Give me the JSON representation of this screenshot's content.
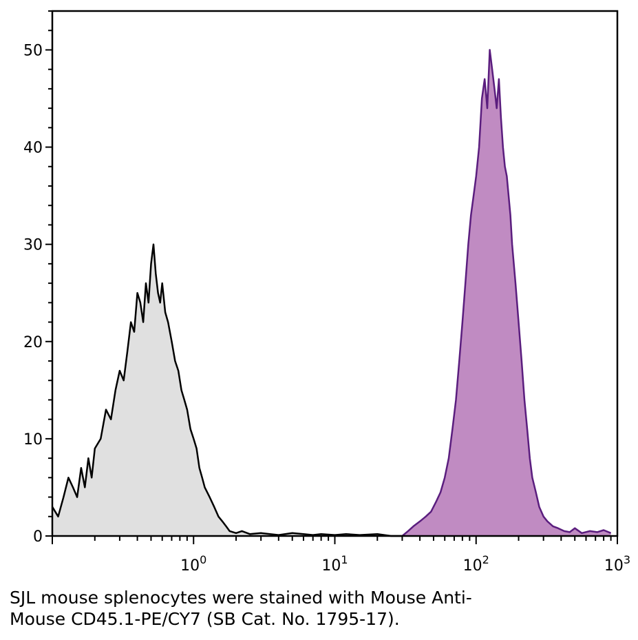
{
  "caption": {
    "line1": "SJL mouse splenocytes were stained with Mouse Anti-",
    "line2": "Mouse CD45.1-PE/CY7 (SB Cat. No. 1795-17)."
  },
  "chart_data": {
    "type": "area",
    "title": "",
    "xlabel": "",
    "ylabel": "",
    "xscale": "log",
    "xlim": [
      0.1,
      1000
    ],
    "ylim": [
      0,
      54
    ],
    "grid": false,
    "y_ticks": [
      0,
      10,
      20,
      30,
      40,
      50
    ],
    "x_ticks": [
      {
        "value": 1,
        "base": "10",
        "exp": "0"
      },
      {
        "value": 10,
        "base": "10",
        "exp": "1"
      },
      {
        "value": 100,
        "base": "10",
        "exp": "2"
      },
      {
        "value": 1000,
        "base": "10",
        "exp": "3"
      }
    ],
    "series": [
      {
        "color": "#000000",
        "fill": "#e0e0e0",
        "x": [
          0.1,
          0.11,
          0.12,
          0.13,
          0.14,
          0.15,
          0.16,
          0.17,
          0.18,
          0.19,
          0.2,
          0.22,
          0.24,
          0.26,
          0.28,
          0.3,
          0.32,
          0.34,
          0.36,
          0.38,
          0.4,
          0.42,
          0.44,
          0.46,
          0.48,
          0.5,
          0.52,
          0.54,
          0.56,
          0.58,
          0.6,
          0.63,
          0.66,
          0.7,
          0.74,
          0.78,
          0.82,
          0.86,
          0.9,
          0.95,
          1.0,
          1.05,
          1.1,
          1.15,
          1.2,
          1.3,
          1.4,
          1.5,
          1.6,
          1.7,
          1.8,
          2.0,
          2.2,
          2.5,
          3.0,
          4.0,
          5.0,
          6.0,
          7.0,
          8.0,
          10.0,
          12.0,
          15.0,
          20.0,
          25.0,
          30.0
        ],
        "y": [
          3,
          2,
          4,
          6,
          5,
          4,
          7,
          5,
          8,
          6,
          9,
          10,
          13,
          12,
          15,
          17,
          16,
          19,
          22,
          21,
          25,
          24,
          22,
          26,
          24,
          28,
          30,
          27,
          25,
          24,
          26,
          23,
          22,
          20,
          18,
          17,
          15,
          14,
          13,
          11,
          10,
          9,
          7,
          6,
          5,
          4,
          3,
          2,
          1.5,
          1,
          0.5,
          0.3,
          0.5,
          0.2,
          0.3,
          0.1,
          0.3,
          0.2,
          0.1,
          0.2,
          0.1,
          0.2,
          0.1,
          0.2,
          0,
          0
        ]
      },
      {
        "color": "#5a1d7e",
        "fill": "#c08bc2",
        "x": [
          30,
          33,
          36,
          40,
          44,
          48,
          52,
          56,
          60,
          64,
          68,
          72,
          76,
          80,
          84,
          88,
          92,
          96,
          100,
          105,
          110,
          115,
          120,
          125,
          130,
          135,
          140,
          145,
          150,
          155,
          160,
          165,
          170,
          175,
          180,
          190,
          200,
          210,
          220,
          230,
          240,
          250,
          265,
          280,
          300,
          320,
          350,
          380,
          420,
          460,
          500,
          560,
          640,
          720,
          800,
          900
        ],
        "y": [
          0,
          0.5,
          1,
          1.5,
          2,
          2.5,
          3.5,
          4.5,
          6,
          8,
          11,
          14,
          18,
          22,
          26,
          30,
          33,
          35,
          37,
          40,
          45,
          47,
          44,
          50,
          48,
          46,
          44,
          47,
          43,
          40,
          38,
          37,
          35,
          33,
          30,
          26,
          22,
          18,
          14,
          11,
          8,
          6,
          4.5,
          3,
          2,
          1.5,
          1,
          0.8,
          0.5,
          0.4,
          0.8,
          0.3,
          0.5,
          0.4,
          0.6,
          0.3
        ]
      }
    ]
  }
}
